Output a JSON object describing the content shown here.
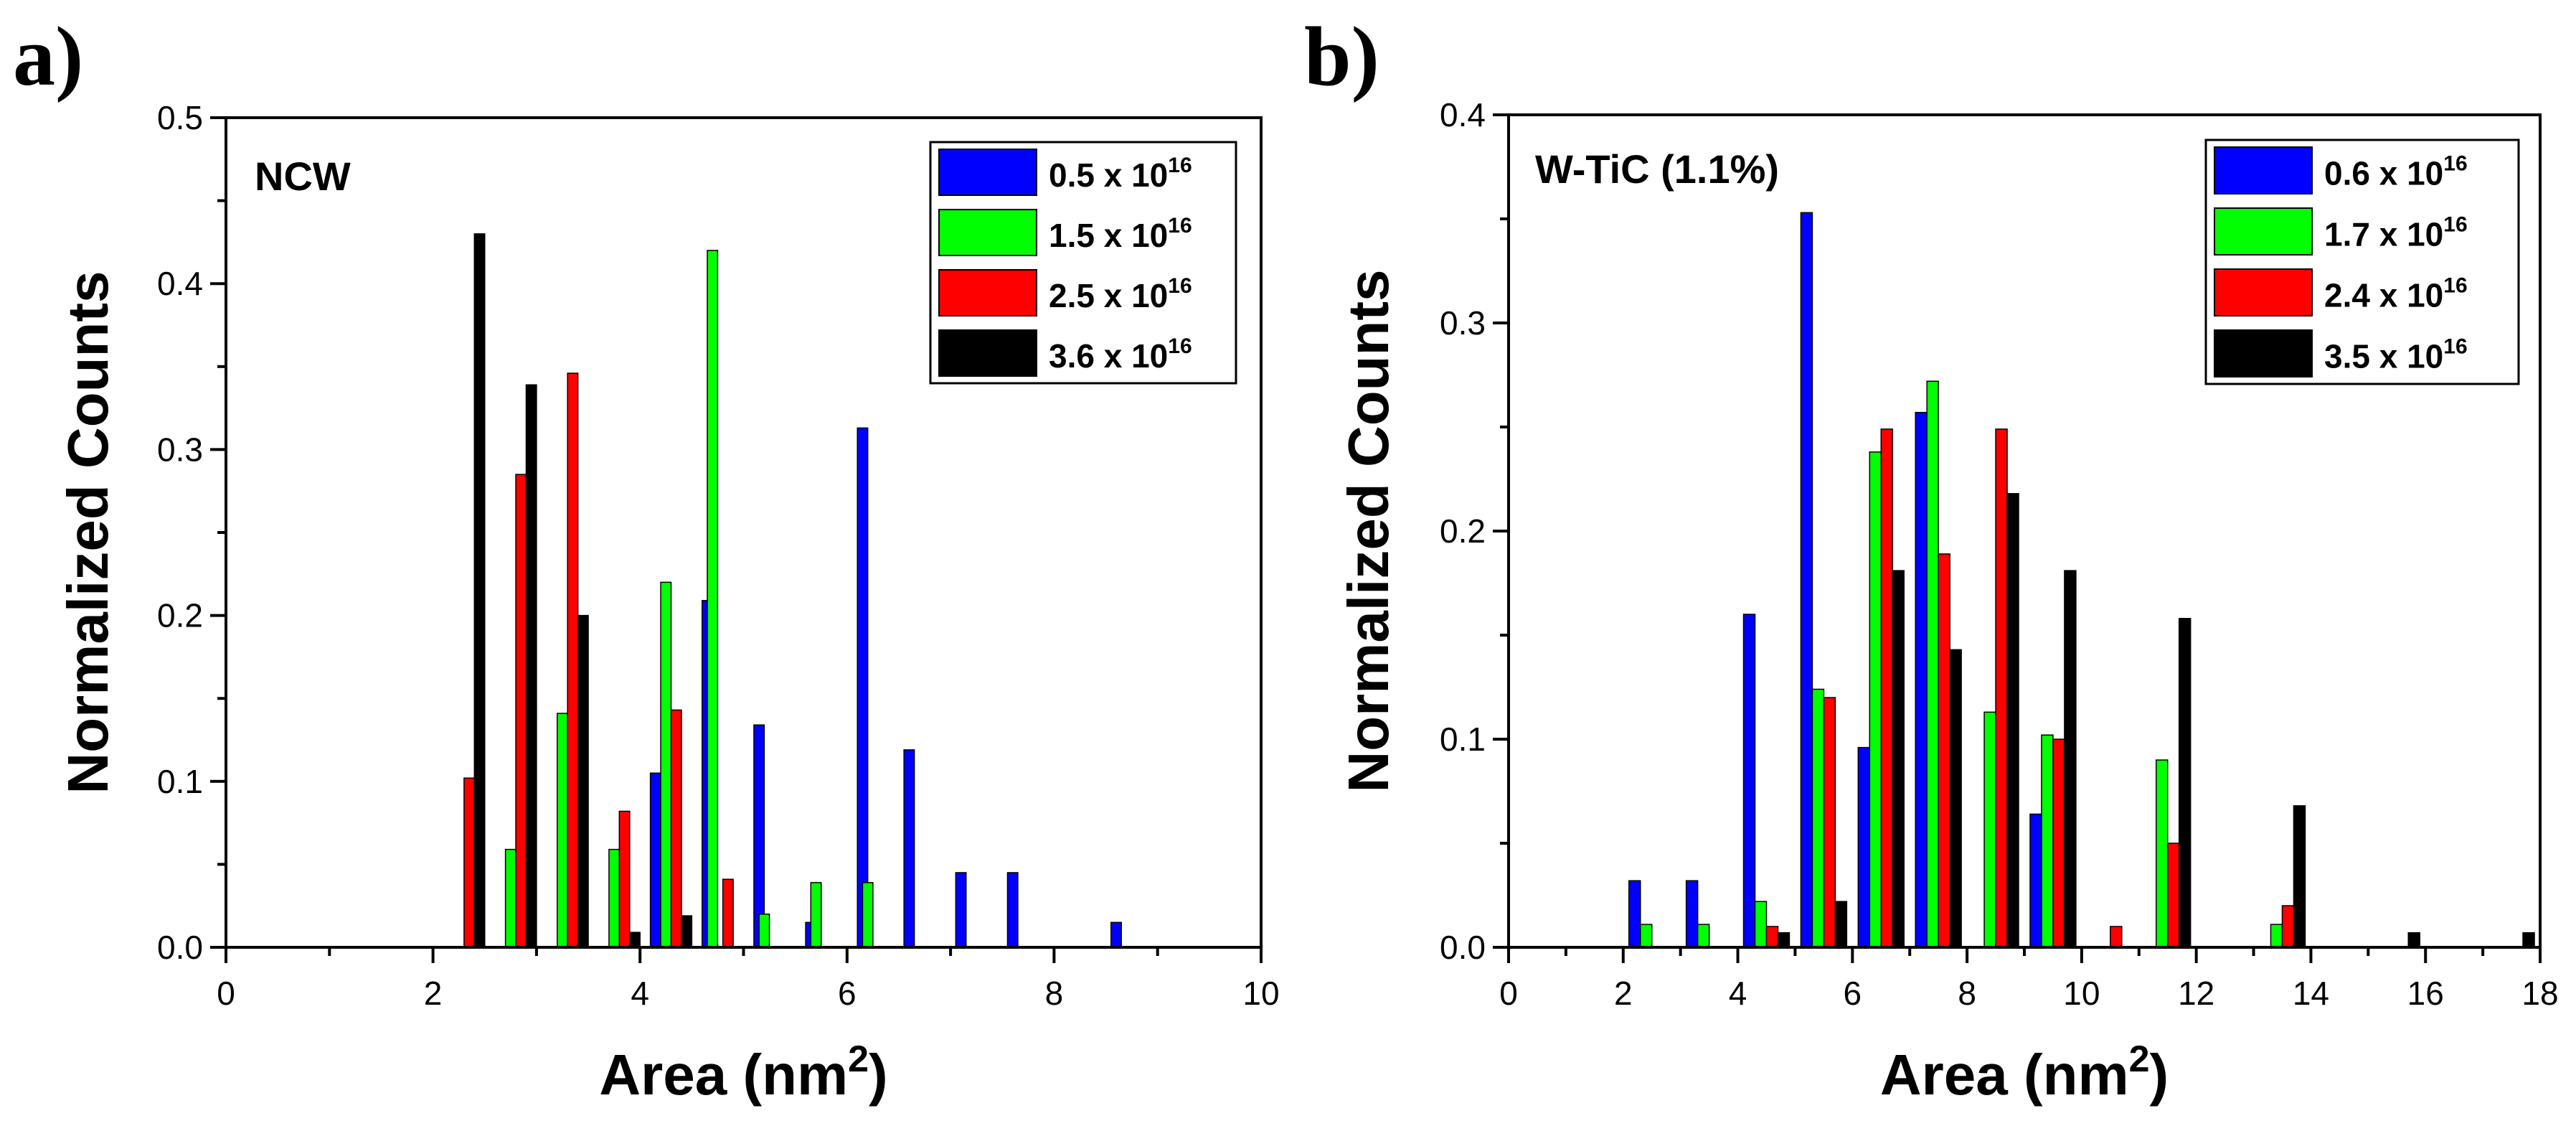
{
  "chart_data": [
    {
      "panel_label": "a)",
      "type": "bar",
      "title": "NCW",
      "xlabel": "Area (nm",
      "xlabel_sup": "2",
      "xlabel_end": ")",
      "ylabel": "Normalized Counts",
      "xlim": [
        0,
        10
      ],
      "ylim": [
        0,
        0.5
      ],
      "xticks": [
        0,
        2,
        4,
        6,
        8,
        10
      ],
      "yticks": [
        0.0,
        0.1,
        0.2,
        0.3,
        0.4,
        0.5
      ],
      "ytick_labels": [
        "0.0",
        "0.1",
        "0.2",
        "0.3",
        "0.4",
        "0.5"
      ],
      "grid": false,
      "legend_position": "top-right",
      "bar_width": 0.1,
      "series": [
        {
          "legend_base": "0.5 x 10",
          "legend_sup": "16",
          "color": "#0000ff",
          "offset": -0.15,
          "points": [
            {
              "x": 4.15,
              "y": 0.105
            },
            {
              "x": 4.65,
              "y": 0.209
            },
            {
              "x": 5.15,
              "y": 0.134
            },
            {
              "x": 5.65,
              "y": 0.015
            },
            {
              "x": 6.15,
              "y": 0.313
            },
            {
              "x": 6.6,
              "y": 0.119
            },
            {
              "x": 7.1,
              "y": 0.045
            },
            {
              "x": 7.6,
              "y": 0.045
            },
            {
              "x": 8.6,
              "y": 0.015
            }
          ]
        },
        {
          "legend_base": "1.5 x 10",
          "legend_sup": "16",
          "color": "#00ff00",
          "offset": -0.05,
          "points": [
            {
              "x": 2.75,
              "y": 0.059
            },
            {
              "x": 3.25,
              "y": 0.141
            },
            {
              "x": 3.75,
              "y": 0.059
            },
            {
              "x": 4.25,
              "y": 0.22
            },
            {
              "x": 4.7,
              "y": 0.42
            },
            {
              "x": 5.2,
              "y": 0.02
            },
            {
              "x": 5.7,
              "y": 0.039
            },
            {
              "x": 6.2,
              "y": 0.039
            }
          ]
        },
        {
          "legend_base": "2.5 x 10",
          "legend_sup": "16",
          "color": "#ff0000",
          "offset": 0.05,
          "points": [
            {
              "x": 2.35,
              "y": 0.102
            },
            {
              "x": 2.85,
              "y": 0.285
            },
            {
              "x": 3.35,
              "y": 0.346
            },
            {
              "x": 3.85,
              "y": 0.082
            },
            {
              "x": 4.35,
              "y": 0.143
            },
            {
              "x": 4.85,
              "y": 0.041
            }
          ]
        },
        {
          "legend_base": "3.6 x 10",
          "legend_sup": "16",
          "color": "#000000",
          "offset": 0.15,
          "points": [
            {
              "x": 2.45,
              "y": 0.43
            },
            {
              "x": 2.95,
              "y": 0.339
            },
            {
              "x": 3.45,
              "y": 0.2
            },
            {
              "x": 3.95,
              "y": 0.009
            },
            {
              "x": 4.45,
              "y": 0.019
            }
          ]
        }
      ]
    },
    {
      "panel_label": "b)",
      "type": "bar",
      "title": "W-TiC (1.1%)",
      "xlabel": "Area (nm",
      "xlabel_sup": "2",
      "xlabel_end": ")",
      "ylabel": "Normalized Counts",
      "xlim": [
        0,
        18
      ],
      "ylim": [
        0,
        0.4
      ],
      "xticks": [
        0,
        2,
        4,
        6,
        8,
        10,
        12,
        14,
        16,
        18
      ],
      "yticks": [
        0.0,
        0.1,
        0.2,
        0.3,
        0.4
      ],
      "ytick_labels": [
        "0.0",
        "0.1",
        "0.2",
        "0.3",
        "0.4"
      ],
      "grid": false,
      "legend_position": "top-right",
      "bar_width": 0.2,
      "series": [
        {
          "legend_base": "0.6 x 10",
          "legend_sup": "16",
          "color": "#0000ff",
          "offset": -0.3,
          "points": [
            {
              "x": 2.2,
              "y": 0.032
            },
            {
              "x": 3.2,
              "y": 0.032
            },
            {
              "x": 4.2,
              "y": 0.16
            },
            {
              "x": 5.2,
              "y": 0.353
            },
            {
              "x": 6.2,
              "y": 0.096
            },
            {
              "x": 7.2,
              "y": 0.257
            },
            {
              "x": 9.2,
              "y": 0.064
            }
          ]
        },
        {
          "legend_base": "1.7 x 10",
          "legend_sup": "16",
          "color": "#00ff00",
          "offset": -0.1,
          "points": [
            {
              "x": 2.4,
              "y": 0.011
            },
            {
              "x": 3.4,
              "y": 0.011
            },
            {
              "x": 4.4,
              "y": 0.022
            },
            {
              "x": 5.4,
              "y": 0.124
            },
            {
              "x": 6.4,
              "y": 0.238
            },
            {
              "x": 7.4,
              "y": 0.272
            },
            {
              "x": 8.4,
              "y": 0.113
            },
            {
              "x": 9.4,
              "y": 0.102
            },
            {
              "x": 11.4,
              "y": 0.09
            },
            {
              "x": 13.4,
              "y": 0.011
            }
          ]
        },
        {
          "legend_base": "2.4 x 10",
          "legend_sup": "16",
          "color": "#ff0000",
          "offset": 0.1,
          "points": [
            {
              "x": 4.6,
              "y": 0.01
            },
            {
              "x": 5.6,
              "y": 0.12
            },
            {
              "x": 6.6,
              "y": 0.249
            },
            {
              "x": 7.6,
              "y": 0.189
            },
            {
              "x": 8.6,
              "y": 0.249
            },
            {
              "x": 9.6,
              "y": 0.1
            },
            {
              "x": 10.6,
              "y": 0.01
            },
            {
              "x": 11.6,
              "y": 0.05
            },
            {
              "x": 13.6,
              "y": 0.02
            }
          ]
        },
        {
          "legend_base": "3.5 x 10",
          "legend_sup": "16",
          "color": "#000000",
          "offset": 0.3,
          "points": [
            {
              "x": 4.8,
              "y": 0.007
            },
            {
              "x": 5.8,
              "y": 0.022
            },
            {
              "x": 6.8,
              "y": 0.181
            },
            {
              "x": 7.8,
              "y": 0.143
            },
            {
              "x": 8.8,
              "y": 0.218
            },
            {
              "x": 9.8,
              "y": 0.181
            },
            {
              "x": 11.8,
              "y": 0.158
            },
            {
              "x": 13.8,
              "y": 0.068
            },
            {
              "x": 15.8,
              "y": 0.007
            },
            {
              "x": 17.8,
              "y": 0.007
            }
          ]
        }
      ]
    }
  ]
}
